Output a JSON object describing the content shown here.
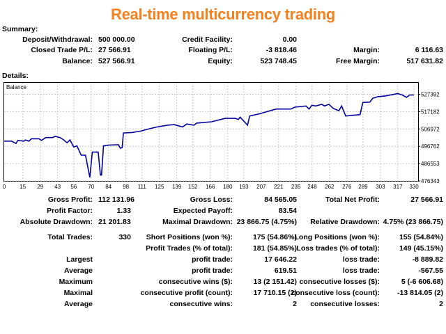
{
  "title": "Real-time multicurrency trading",
  "summary": {
    "heading": "Summary:",
    "rows": [
      [
        {
          "label": "Deposit/Withdrawal:",
          "value": "500 000.00"
        },
        {
          "label": "Credit Facility:",
          "value": "0.00"
        },
        {
          "label": "",
          "value": ""
        }
      ],
      [
        {
          "label": "Closed Trade P/L:",
          "value": "27 566.91"
        },
        {
          "label": "Floating P/L:",
          "value": "-3 818.46"
        },
        {
          "label": "Margin:",
          "value": "6 116.63"
        }
      ],
      [
        {
          "label": "Balance:",
          "value": "527 566.91"
        },
        {
          "label": "Equity:",
          "value": "523 748.45"
        },
        {
          "label": "Free Margin:",
          "value": "517 631.82"
        }
      ]
    ]
  },
  "details": {
    "heading": "Details:",
    "rows": [
      [
        {
          "label": "Gross Profit:",
          "value": "112 131.96"
        },
        {
          "label": "Gross Loss:",
          "value": "84 565.05"
        },
        {
          "label": "Total Net Profit:",
          "value": "27 566.91"
        }
      ],
      [
        {
          "label": "Profit Factor:",
          "value": "1.33"
        },
        {
          "label": "Expected Payoff:",
          "value": "83.54"
        },
        {
          "label": "",
          "value": ""
        }
      ],
      [
        {
          "label": "Absolute Drawdown:",
          "value": "21 201.83"
        },
        {
          "label": "Maximal Drawdown:",
          "value": "23 866.75 (4.75%)"
        },
        {
          "label": "Relative Drawdown:",
          "value": "4.75% (23 866.75)"
        }
      ],
      [
        {
          "label": "Total Trades:",
          "value": "330"
        },
        {
          "label": "Short Positions (won %):",
          "value": "175 (54.86%)"
        },
        {
          "label": "Long Positions (won %):",
          "value": "155 (54.84%)"
        }
      ],
      [
        {
          "label": "",
          "value": ""
        },
        {
          "label": "Profit Trades (% of total):",
          "value": "181 (54.85%)"
        },
        {
          "label": "Loss trades (% of total):",
          "value": "149 (45.15%)"
        }
      ],
      [
        {
          "label": "Largest",
          "value": ""
        },
        {
          "label": "profit trade:",
          "value": "17 646.22"
        },
        {
          "label": "loss trade:",
          "value": "-8 889.82"
        }
      ],
      [
        {
          "label": "Average",
          "value": ""
        },
        {
          "label": "profit trade:",
          "value": "619.51"
        },
        {
          "label": "loss trade:",
          "value": "-567.55"
        }
      ],
      [
        {
          "label": "Maximum",
          "value": ""
        },
        {
          "label": "consecutive wins ($):",
          "value": "13 (2 151.42)"
        },
        {
          "label": "consecutive losses ($):",
          "value": "5 (-6 606.68)"
        }
      ],
      [
        {
          "label": "Maximal",
          "value": ""
        },
        {
          "label": "consecutive profit (count):",
          "value": "17 710.15 (2)"
        },
        {
          "label": "consecutive loss (count):",
          "value": "-13 814.05 (2)"
        }
      ],
      [
        {
          "label": "Average",
          "value": ""
        },
        {
          "label": "consecutive wins:",
          "value": "2"
        },
        {
          "label": "consecutive losses:",
          "value": "2"
        }
      ]
    ]
  },
  "chart_data": {
    "type": "line",
    "legend": "Balance",
    "legend_placement": "top-left",
    "grid": true,
    "line_color": "#00009c",
    "xlim": [
      0,
      332
    ],
    "ylim": [
      476343,
      531000
    ],
    "x_ticks": [
      0,
      15,
      29,
      43,
      56,
      70,
      84,
      98,
      111,
      125,
      139,
      152,
      166,
      180,
      193,
      207,
      221,
      235,
      248,
      262,
      276,
      289,
      303,
      317,
      330
    ],
    "y_ticks": [
      476343,
      486553,
      496762,
      506972,
      517182,
      527392
    ],
    "series": [
      {
        "x": [
          0,
          6,
          9.5,
          11,
          16,
          17,
          20,
          22,
          28,
          30,
          33.5,
          39,
          41,
          45,
          48,
          50.6,
          53,
          56,
          58.6,
          62,
          65.5,
          69,
          71,
          75.7,
          77.5,
          78.4,
          80,
          84,
          92,
          93.5,
          95,
          96,
          103,
          110,
          117,
          123,
          131.5,
          137,
          143.6,
          147,
          153,
          155,
          167,
          178,
          186,
          188.6,
          190,
          194,
          196,
          197.7,
          205.7,
          219,
          231,
          234,
          243,
          245.6,
          247.8,
          251,
          255.8,
          258,
          261.5,
          265,
          269.5,
          271.8,
          275,
          286.6,
          288.8,
          294.6,
          296.8,
          301,
          307,
          317,
          320.7,
          324,
          326.5,
          330
        ],
        "y": [
          499800,
          499800,
          498400,
          500200,
          499800,
          500500,
          499800,
          501200,
          501200,
          500200,
          501900,
          501900,
          502600,
          501900,
          500500,
          498800,
          500500,
          496300,
          497000,
          491500,
          491500,
          478400,
          493300,
          493300,
          479800,
          479800,
          497000,
          497400,
          497700,
          495600,
          496000,
          504600,
          504900,
          505700,
          507100,
          508100,
          509200,
          509500,
          508100,
          509900,
          509200,
          510400,
          511200,
          513200,
          513200,
          512600,
          513900,
          510800,
          509200,
          514600,
          515900,
          518700,
          518700,
          519800,
          520500,
          518700,
          520900,
          520500,
          521500,
          520500,
          521500,
          519100,
          517700,
          520500,
          514600,
          515400,
          522600,
          522800,
          525000,
          526000,
          526400,
          527800,
          527000,
          525600,
          527000,
          527000
        ]
      }
    ]
  }
}
